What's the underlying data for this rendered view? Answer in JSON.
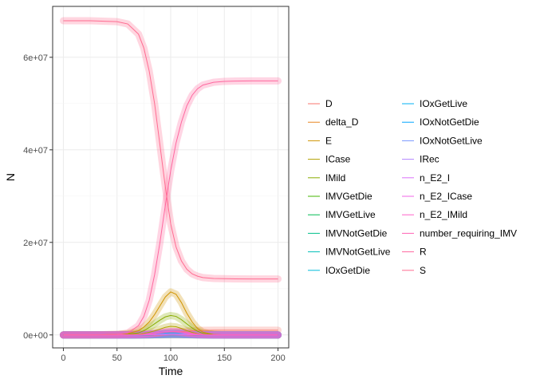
{
  "chart_data": {
    "type": "line",
    "title": "",
    "xlabel": "Time",
    "ylabel": "N",
    "xlim": [
      -10,
      210
    ],
    "ylim": [
      -2800000,
      71000000
    ],
    "x_ticks": [
      0,
      50,
      100,
      150,
      200
    ],
    "x_tick_labels": [
      "0",
      "50",
      "100",
      "150",
      "200"
    ],
    "y_ticks": [
      0,
      20000000,
      40000000,
      60000000
    ],
    "y_tick_labels": [
      "0e+00",
      "2e+07",
      "4e+07",
      "6e+07"
    ],
    "grid": true,
    "legend_position": "right",
    "x": [
      0,
      25,
      50,
      60,
      70,
      75,
      80,
      85,
      90,
      95,
      100,
      105,
      110,
      115,
      120,
      125,
      130,
      140,
      150,
      160,
      175,
      200
    ],
    "series": [
      {
        "name": "D",
        "color": "#F8766D",
        "values": [
          0,
          0,
          2000,
          10000,
          30000,
          60000,
          100000,
          160000,
          240000,
          340000,
          460000,
          590000,
          720000,
          830000,
          910000,
          960000,
          990000,
          1010000,
          1020000,
          1020000,
          1020000,
          1020000
        ]
      },
      {
        "name": "delta_D",
        "color": "#E7851E",
        "values": [
          0,
          0,
          0,
          0,
          1000,
          2000,
          4000,
          7000,
          10000,
          14000,
          17000,
          18000,
          17000,
          14000,
          11000,
          8000,
          5000,
          2000,
          1000,
          0,
          0,
          0
        ]
      },
      {
        "name": "E",
        "color": "#D09400",
        "values": [
          0,
          2000,
          100000,
          300000,
          900000,
          1700000,
          2800000,
          4400000,
          6300000,
          8200000,
          9300000,
          8800000,
          7000000,
          4700000,
          2800000,
          1400000,
          600000,
          100000,
          20000,
          0,
          0,
          0
        ]
      },
      {
        "name": "ICase",
        "color": "#B2A100",
        "values": [
          0,
          0,
          20000,
          60000,
          180000,
          340000,
          560000,
          880000,
          1260000,
          1640000,
          1860000,
          1760000,
          1400000,
          940000,
          560000,
          280000,
          120000,
          20000,
          4000,
          0,
          0,
          0
        ]
      },
      {
        "name": "IMild",
        "color": "#89AC00",
        "values": [
          0,
          1000,
          50000,
          150000,
          450000,
          900000,
          1600000,
          2400000,
          3200000,
          3900000,
          4200000,
          4000000,
          3300000,
          2400000,
          1500000,
          800000,
          350000,
          60000,
          10000,
          0,
          0,
          0
        ]
      },
      {
        "name": "IMVGetDie",
        "color": "#45B500",
        "values": [
          0,
          0,
          2000,
          5000,
          15000,
          30000,
          55000,
          90000,
          130000,
          170000,
          200000,
          210000,
          190000,
          150000,
          100000,
          60000,
          30000,
          6000,
          1000,
          0,
          0,
          0
        ]
      },
      {
        "name": "IMVGetLive",
        "color": "#00BC51",
        "values": [
          0,
          0,
          1000,
          3000,
          8000,
          15000,
          28000,
          45000,
          65000,
          85000,
          100000,
          105000,
          95000,
          75000,
          50000,
          30000,
          15000,
          3000,
          500,
          0,
          0,
          0
        ]
      },
      {
        "name": "IMVNotGetDie",
        "color": "#00C08B",
        "values": [
          0,
          0,
          3000,
          8000,
          25000,
          50000,
          90000,
          150000,
          220000,
          290000,
          330000,
          340000,
          300000,
          230000,
          150000,
          90000,
          45000,
          8000,
          1000,
          0,
          0,
          0
        ]
      },
      {
        "name": "IMVNotGetLive",
        "color": "#00C0B8",
        "values": [
          0,
          0,
          1000,
          2000,
          6000,
          12000,
          22000,
          36000,
          52000,
          68000,
          80000,
          82000,
          72000,
          55000,
          36000,
          21000,
          10000,
          2000,
          300,
          0,
          0,
          0
        ]
      },
      {
        "name": "IOxGetDie",
        "color": "#00BBDB",
        "values": [
          0,
          0,
          2000,
          6000,
          18000,
          36000,
          65000,
          105000,
          150000,
          195000,
          225000,
          230000,
          205000,
          160000,
          105000,
          62000,
          30000,
          6000,
          1000,
          0,
          0,
          0
        ]
      },
      {
        "name": "IOxGetLive",
        "color": "#00B2F3",
        "values": [
          0,
          0,
          4000,
          12000,
          36000,
          72000,
          130000,
          210000,
          300000,
          390000,
          450000,
          460000,
          410000,
          320000,
          210000,
          125000,
          60000,
          12000,
          2000,
          0,
          0,
          0
        ]
      },
      {
        "name": "IOxNotGetDie",
        "color": "#00A5FF",
        "values": [
          0,
          0,
          1000,
          3000,
          9000,
          18000,
          32000,
          52000,
          75000,
          97000,
          112000,
          115000,
          102000,
          80000,
          52000,
          31000,
          15000,
          3000,
          500,
          0,
          0,
          0
        ]
      },
      {
        "name": "IOxNotGetLive",
        "color": "#7997FF",
        "values": [
          0,
          0,
          1000,
          2000,
          7000,
          14000,
          25000,
          40000,
          58000,
          75000,
          87000,
          89000,
          79000,
          62000,
          40000,
          24000,
          12000,
          2000,
          400,
          0,
          0,
          0
        ]
      },
      {
        "name": "IRec",
        "color": "#B385FF",
        "values": [
          0,
          0,
          2000,
          6000,
          20000,
          40000,
          72000,
          118000,
          170000,
          222000,
          256000,
          262000,
          234000,
          182000,
          120000,
          72000,
          36000,
          7000,
          1000,
          0,
          0,
          0
        ]
      },
      {
        "name": "n_E2_I",
        "color": "#DB72FB",
        "values": [
          0,
          0,
          8000,
          25000,
          75000,
          140000,
          230000,
          360000,
          520000,
          680000,
          770000,
          730000,
          580000,
          390000,
          230000,
          115000,
          50000,
          8000,
          1500,
          0,
          0,
          0
        ]
      },
      {
        "name": "n_E2_ICase",
        "color": "#F265E7",
        "values": [
          0,
          0,
          1000,
          4000,
          12000,
          22000,
          37000,
          58000,
          84000,
          110000,
          124000,
          118000,
          94000,
          63000,
          37000,
          19000,
          8000,
          1300,
          200,
          0,
          0,
          0
        ]
      },
      {
        "name": "n_E2_IMild",
        "color": "#FF61C9",
        "values": [
          0,
          0,
          7000,
          21000,
          63000,
          118000,
          193000,
          302000,
          436000,
          570000,
          646000,
          612000,
          486000,
          327000,
          193000,
          96000,
          42000,
          6700,
          1300,
          0,
          0,
          0
        ]
      },
      {
        "name": "number_requiring_IMV",
        "color": "#FF63B4",
        "values": [
          0,
          0,
          7000,
          18000,
          54000,
          107000,
          195000,
          321000,
          467000,
          613000,
          710000,
          737000,
          656000,
          510000,
          336000,
          201000,
          100000,
          19000,
          2800,
          0,
          0,
          0
        ]
      },
      {
        "name": "R",
        "color": "#FF689F",
        "values": [
          0,
          0,
          100000,
          400000,
          2000000,
          4000000,
          7500000,
          13000000,
          20000000,
          28000000,
          35500000,
          41500000,
          46000000,
          49500000,
          51800000,
          53200000,
          54000000,
          54600000,
          54800000,
          54850000,
          54900000,
          54900000
        ]
      },
      {
        "name": "S",
        "color": "#FF6C91",
        "values": [
          67900000,
          67900000,
          67700000,
          67200000,
          65000000,
          62000000,
          57000000,
          50000000,
          41000000,
          32000000,
          24000000,
          19000000,
          16000000,
          14200000,
          13200000,
          12700000,
          12400000,
          12200000,
          12150000,
          12120000,
          12100000,
          12100000
        ]
      }
    ]
  }
}
